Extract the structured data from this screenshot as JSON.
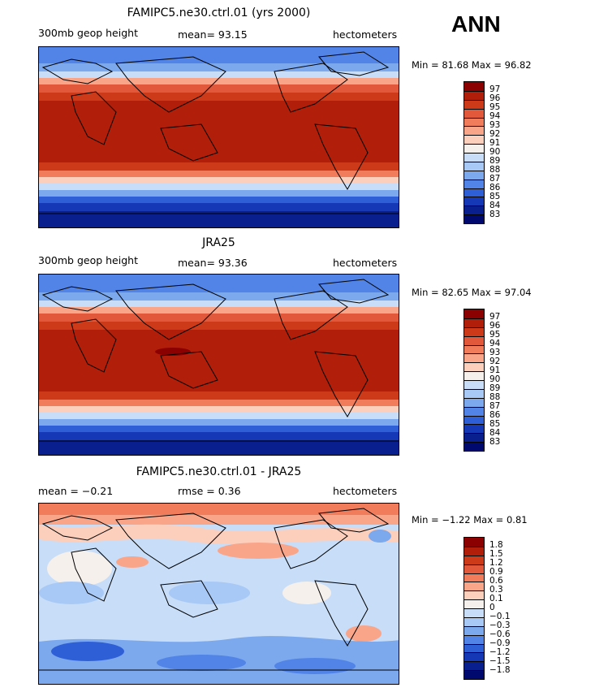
{
  "season": "ANN",
  "panels": [
    {
      "title": "FAMIPC5.ne30.ctrl.01 (yrs 2000)",
      "left_label": "300mb geop height",
      "center_label": "mean=   93.15",
      "right_label": "hectometers",
      "minmax": "Min =   81.68  Max =   96.82",
      "scale": "abs"
    },
    {
      "title": "JRA25",
      "left_label": "300mb geop height",
      "center_label": "mean=   93.36",
      "right_label": "hectometers",
      "minmax": "Min =   82.65  Max =   97.04",
      "scale": "abs"
    },
    {
      "title": "FAMIPC5.ne30.ctrl.01 - JRA25",
      "left_label": "mean =   −0.21",
      "center_label": "rmse =    0.36",
      "right_label": "hectometers",
      "minmax": "Min =   −1.22  Max =    0.81",
      "scale": "diff"
    }
  ],
  "colorbars": {
    "abs": {
      "labels": [
        "97",
        "96",
        "95",
        "94",
        "93",
        "92",
        "91",
        "90",
        "89",
        "88",
        "87",
        "86",
        "85",
        "84",
        "83"
      ],
      "colors": [
        "#8b0000",
        "#b11f0a",
        "#cc3a1a",
        "#e2583a",
        "#f07c5c",
        "#f9a58a",
        "#fccfbd",
        "#f5f0eb",
        "#c7ddf8",
        "#a8c8f5",
        "#7ca8ee",
        "#5184e6",
        "#2f5fd6",
        "#1538b6",
        "#0a1f8e",
        "#000a6e"
      ]
    },
    "diff": {
      "labels": [
        "1.8",
        "1.5",
        "1.2",
        "0.9",
        "0.6",
        "0.3",
        "0.1",
        "0",
        "−0.1",
        "−0.3",
        "−0.6",
        "−0.9",
        "−1.2",
        "−1.5",
        "−1.8"
      ],
      "colors": [
        "#8b0000",
        "#b11f0a",
        "#cc3a1a",
        "#e2583a",
        "#f07c5c",
        "#f9a58a",
        "#fccfbd",
        "#f5f0eb",
        "#c7ddf8",
        "#a8c8f5",
        "#7ca8ee",
        "#5184e6",
        "#2f5fd6",
        "#1538b6",
        "#0a1f8e",
        "#000a6e"
      ]
    }
  }
}
